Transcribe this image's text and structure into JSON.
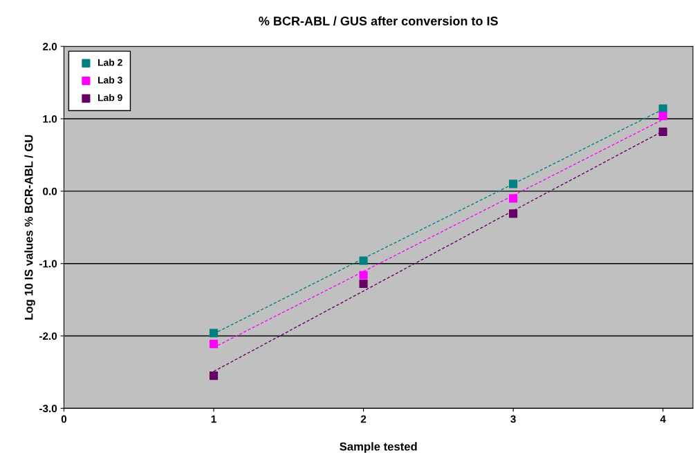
{
  "chart_data": {
    "type": "scatter",
    "title": "% BCR-ABL / GUS after conversion to IS",
    "xlabel": "Sample tested",
    "ylabel": "Log 10 IS values % BCR-ABL / GU",
    "x": [
      1,
      2,
      3,
      4
    ],
    "series": [
      {
        "name": "Lab 2",
        "color": "#008080",
        "values": [
          -1.96,
          -0.96,
          0.1,
          1.14
        ],
        "marker": "square"
      },
      {
        "name": "Lab 3",
        "color": "#ff00ff",
        "values": [
          -2.11,
          -1.16,
          -0.1,
          1.04
        ],
        "marker": "square"
      },
      {
        "name": "Lab 9",
        "color": "#660066",
        "values": [
          -2.55,
          -1.28,
          -0.31,
          0.82
        ],
        "marker": "square"
      },
      {
        "type": "line",
        "color": "#008080",
        "values": [
          -1.97,
          -0.93,
          0.1,
          1.13
        ],
        "line_style": "dashed",
        "marker": "none"
      },
      {
        "type": "line",
        "color": "#ff00ff",
        "values": [
          -2.16,
          -1.11,
          -0.06,
          0.99
        ],
        "line_style": "dashed",
        "marker": "none"
      },
      {
        "type": "line",
        "color": "#660066",
        "values": [
          -2.49,
          -1.38,
          -0.27,
          0.83
        ],
        "line_style": "dashed",
        "marker": "none"
      }
    ],
    "xlim": [
      0,
      4.2
    ],
    "xticks": [
      0,
      1,
      2,
      3,
      4
    ],
    "ylim": [
      -3.0,
      2.0
    ],
    "yticks": [
      {
        "value": -3,
        "label": "-3.0"
      },
      {
        "value": -2,
        "label": "-2.0"
      },
      {
        "value": -1,
        "label": "-1.0"
      },
      {
        "value": 0,
        "label": "0.0"
      },
      {
        "value": 1,
        "label": "1.0"
      },
      {
        "value": 2,
        "label": "2.0"
      }
    ],
    "grid": "y",
    "legend": "top left"
  }
}
